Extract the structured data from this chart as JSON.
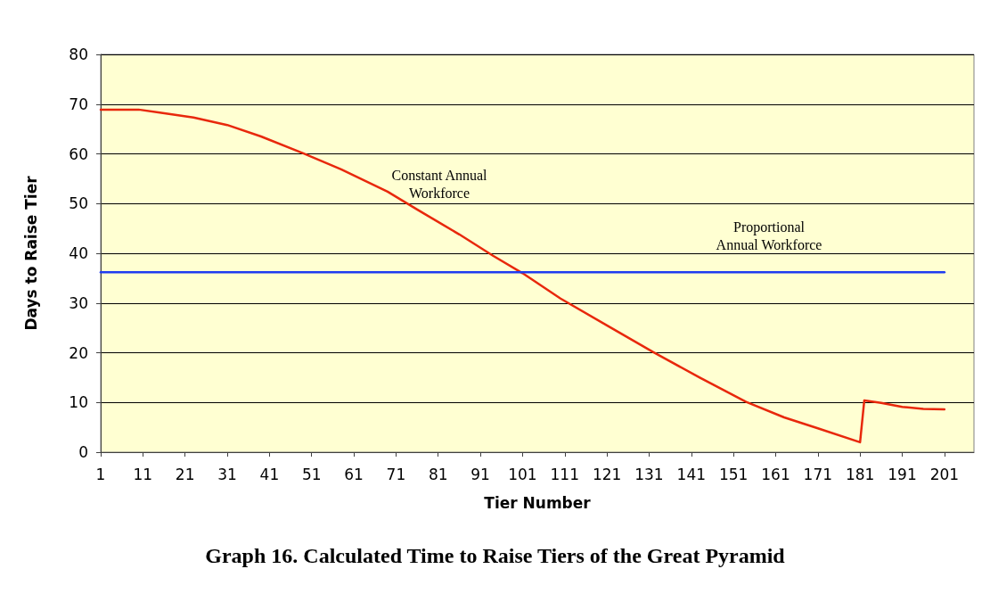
{
  "chart_data": {
    "type": "line",
    "title": "Graph 16. Calculated Time to Raise Tiers of the Great Pyramid",
    "xlabel": "Tier Number",
    "ylabel": "Days to Raise Tier",
    "annotations": [
      "Constant Annual\nWorkforce",
      "Proportional\nAnnual Workforce"
    ],
    "series": [
      {
        "color": "#e8280c",
        "x": [
          1,
          10,
          15,
          23,
          31,
          39,
          49,
          58,
          69,
          76,
          86,
          94,
          101,
          110,
          121,
          132,
          143,
          154,
          163,
          171,
          181,
          182,
          186,
          191,
          196,
          201
        ],
        "values": [
          68.9,
          68.9,
          68.3,
          67.3,
          65.8,
          63.5,
          60.1,
          56.9,
          52.4,
          48.8,
          43.8,
          39.5,
          36,
          30.9,
          25.5,
          20.1,
          15,
          10.1,
          7,
          4.8,
          2,
          10.4,
          9.9,
          9.1,
          8.7,
          8.6
        ]
      },
      {
        "color": "#1f3cf0",
        "x": [
          1,
          201
        ],
        "values": [
          36.2,
          36.2
        ]
      }
    ],
    "xlim": [
      1,
      208
    ],
    "xticks": [
      1,
      11,
      21,
      31,
      41,
      51,
      61,
      71,
      81,
      91,
      101,
      111,
      121,
      131,
      141,
      151,
      161,
      171,
      181,
      191,
      201
    ],
    "ylim": [
      0,
      80
    ],
    "yticks": [
      0,
      10,
      20,
      30,
      40,
      50,
      60,
      70,
      80
    ],
    "grid": "y",
    "marker": "none",
    "line_style": "solid"
  }
}
